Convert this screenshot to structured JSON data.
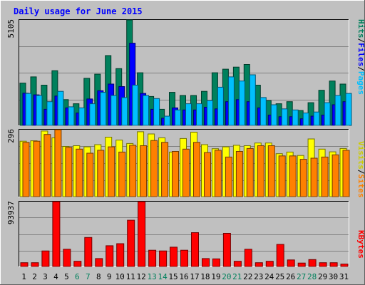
{
  "chart_data": {
    "type": "bar",
    "title": "Daily usage for June 2015",
    "categories": [
      "1",
      "2",
      "3",
      "4",
      "5",
      "6",
      "7",
      "8",
      "9",
      "10",
      "11",
      "12",
      "13",
      "14",
      "15",
      "16",
      "17",
      "18",
      "19",
      "20",
      "21",
      "22",
      "23",
      "24",
      "25",
      "26",
      "27",
      "28",
      "29",
      "30",
      "31"
    ],
    "weekend_days": [
      6,
      7,
      13,
      14,
      20,
      21,
      27,
      28
    ],
    "panels": [
      {
        "name": "hits-files-pages",
        "ymax": 5105,
        "ymax_label": "5105",
        "legend": [
          "Pages",
          "Files",
          "Hits"
        ],
        "series": [
          {
            "name": "Hits",
            "color": "#00805c",
            "values": [
              2050,
              2350,
              1950,
              2650,
              1250,
              1050,
              2280,
              2480,
              3380,
              2750,
              5105,
              2550,
              1400,
              780,
              1600,
              1450,
              1450,
              1650,
              2550,
              2720,
              2820,
              2950,
              1950,
              1200,
              1050,
              1150,
              720,
              1100,
              1700,
              2150,
              2000
            ]
          },
          {
            "name": "Files",
            "color": "#0000ff",
            "values": [
              1560,
              1480,
              780,
              1420,
              850,
              600,
              1280,
              1680,
              2000,
              1880,
              3980,
              1550,
              780,
              350,
              850,
              750,
              750,
              880,
              800,
              1150,
              1250,
              1150,
              850,
              500,
              420,
              420,
              320,
              450,
              500,
              1000,
              1150
            ]
          },
          {
            "name": "Pages",
            "color": "#00bfff",
            "values": [
              1550,
              1450,
              1150,
              1650,
              900,
              850,
              1050,
              1600,
              1450,
              1350,
              1950,
              1450,
              1300,
              450,
              750,
              1050,
              1050,
              1200,
              1850,
              2350,
              2150,
              2450,
              1350,
              1000,
              800,
              750,
              600,
              650,
              1100,
              1450,
              1550
            ]
          }
        ]
      },
      {
        "name": "visits-sites",
        "ymax": 296,
        "ymax_label": "296",
        "legend": [
          "Sites",
          "Visits"
        ],
        "series": [
          {
            "name": "Visits",
            "color": "#ffff00",
            "values": [
              245,
              247,
              290,
              260,
              222,
              225,
              220,
              230,
              263,
              250,
              235,
              287,
              277,
              260,
              197,
              257,
              285,
              230,
              212,
              220,
              227,
              225,
              237,
              237,
              190,
              197,
              182,
              255,
              210,
              198,
              213
            ]
          },
          {
            "name": "Sites",
            "color": "#ff8000",
            "values": [
              240,
              245,
              275,
              296,
              218,
              210,
              192,
              205,
              220,
              197,
              227,
              225,
              248,
              240,
              200,
              210,
              240,
              195,
              205,
              175,
              200,
              213,
              225,
              225,
              180,
              180,
              165,
              170,
              175,
              185,
              205
            ]
          }
        ]
      },
      {
        "name": "kbytes",
        "ymax": 93937,
        "ymax_label": "93937",
        "legend": [
          "KBytes"
        ],
        "series": [
          {
            "name": "KBytes",
            "color": "#ff0000",
            "values": [
              5500,
              5500,
              22500,
              93937,
              25000,
              7500,
              42000,
              11500,
              30000,
              33000,
              67000,
              93937,
              23500,
              22500,
              28000,
              23500,
              49000,
              11500,
              11000,
              48000,
              7500,
              25000,
              5500,
              7500,
              32000,
              9500,
              5000,
              10000,
              5500,
              5500,
              3500
            ]
          }
        ]
      }
    ]
  }
}
